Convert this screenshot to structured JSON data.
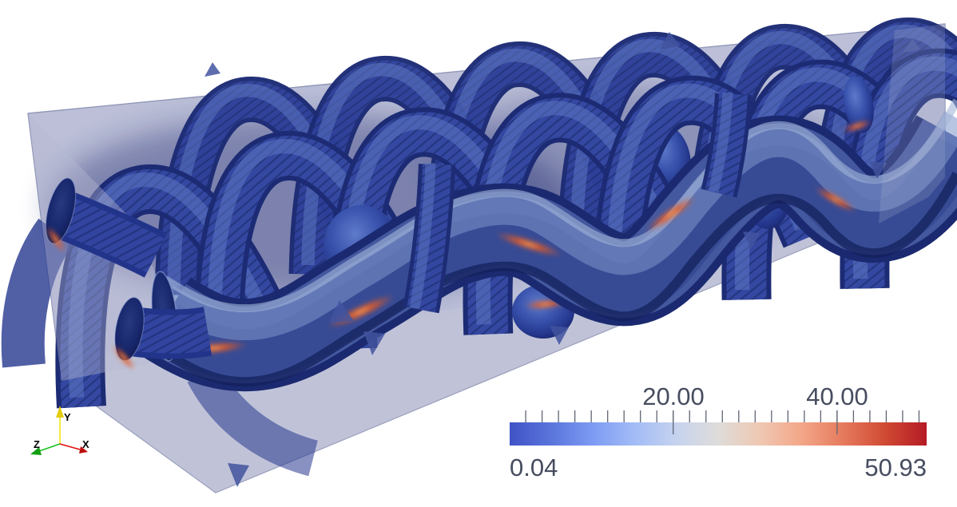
{
  "view": {
    "background": "#ffffff"
  },
  "chart_data": {
    "type": "3d-scalar-field-render",
    "title": "",
    "scene": {
      "object": "woven-yarn-tube-bundle-in-translucent-box",
      "box_color": "#b8bcd5",
      "tube_color_low": "#2b3e9b",
      "contact_color_high": "#d94f1e"
    },
    "colorbar": {
      "orientation": "horizontal",
      "min": 0.04,
      "max": 50.93,
      "min_label": "0.04",
      "max_label": "50.93",
      "major_ticks": [
        {
          "value": 20,
          "label": "20.00"
        },
        {
          "value": 40,
          "label": "40.00"
        }
      ],
      "minor_tick_start": 2,
      "minor_tick_step": 2,
      "minor_tick_end": 50,
      "colormap_name": "cool-to-warm",
      "colormap": [
        {
          "pos": 0.0,
          "color": "#4053c6"
        },
        {
          "pos": 0.1,
          "color": "#5b75dc"
        },
        {
          "pos": 0.2,
          "color": "#7d9bf3"
        },
        {
          "pos": 0.3,
          "color": "#a3bcf7"
        },
        {
          "pos": 0.4,
          "color": "#c6d3ee"
        },
        {
          "pos": 0.5,
          "color": "#dedcda"
        },
        {
          "pos": 0.6,
          "color": "#efc8b3"
        },
        {
          "pos": 0.7,
          "color": "#f3a688"
        },
        {
          "pos": 0.8,
          "color": "#e67a5d"
        },
        {
          "pos": 0.9,
          "color": "#d04a33"
        },
        {
          "pos": 1.0,
          "color": "#b51b25"
        }
      ],
      "label_color": "#474d60",
      "tick_color": "#5f6575"
    }
  },
  "orientation_axes": {
    "x": {
      "label": "X",
      "color": "#e01010"
    },
    "y": {
      "label": "Y",
      "color": "#f2e713"
    },
    "z": {
      "label": "Z",
      "color": "#19c421"
    },
    "label_color": "#000000"
  }
}
